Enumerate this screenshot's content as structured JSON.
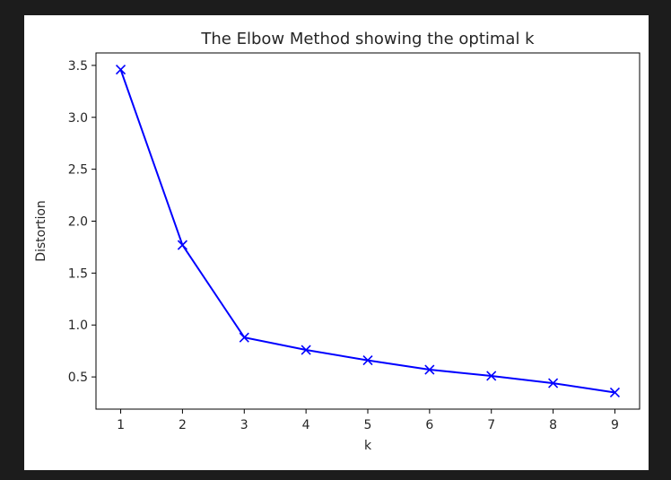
{
  "chart_data": {
    "type": "line",
    "title": "The Elbow Method showing the optimal k",
    "xlabel": "k",
    "ylabel": "Distortion",
    "x": [
      1,
      2,
      3,
      4,
      5,
      6,
      7,
      8,
      9
    ],
    "series": [
      {
        "values": [
          3.46,
          1.77,
          0.88,
          0.76,
          0.66,
          0.57,
          0.51,
          0.44,
          0.35
        ],
        "color": "#0000ff",
        "marker": "x"
      }
    ],
    "xticks": [
      "1",
      "2",
      "3",
      "4",
      "5",
      "6",
      "7",
      "8",
      "9"
    ],
    "yticks": [
      "0.5",
      "1.0",
      "1.5",
      "2.0",
      "2.5",
      "3.0",
      "3.5"
    ],
    "xlim": [
      0.6,
      9.4
    ],
    "ylim": [
      0.19,
      3.62
    ],
    "grid": false,
    "legend": "none"
  }
}
